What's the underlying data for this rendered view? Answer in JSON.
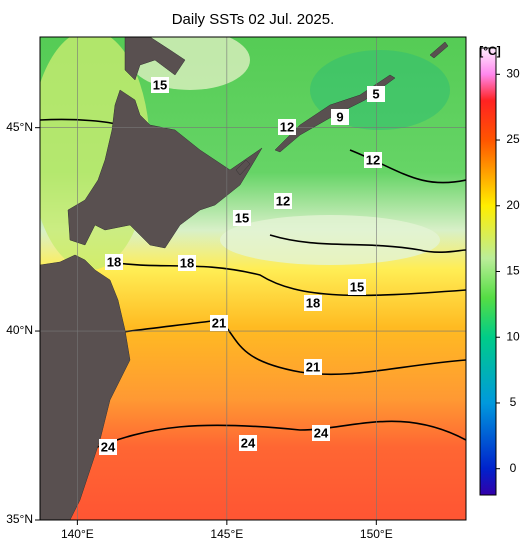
{
  "title": "Daily SSTs 02 Jul. 2025.",
  "map": {
    "xlim": [
      138.75,
      153
    ],
    "ylim": [
      35,
      47.1
    ],
    "xticks": [
      {
        "value": 140,
        "label": "140°E"
      },
      {
        "value": 145,
        "label": "145°E"
      },
      {
        "value": 150,
        "label": "150°E"
      }
    ],
    "yticks": [
      {
        "value": 35,
        "label": "35°N"
      },
      {
        "value": 40,
        "label": "40°N"
      },
      {
        "value": 45,
        "label": "45°N"
      }
    ],
    "contour_labels": [
      15,
      12,
      9,
      5,
      12,
      12,
      15,
      18,
      18,
      15,
      18,
      21,
      21,
      24,
      24,
      24
    ]
  },
  "colorbar": {
    "unit": "[°C]",
    "lim": [
      -2,
      32
    ],
    "ticks": [
      0,
      5,
      10,
      15,
      20,
      25,
      30
    ],
    "colormap": [
      {
        "value": -2,
        "color": "#3300aa"
      },
      {
        "value": 0,
        "color": "#0022cc"
      },
      {
        "value": 5,
        "color": "#0099dd"
      },
      {
        "value": 10,
        "color": "#00cc88"
      },
      {
        "value": 13,
        "color": "#55dd44"
      },
      {
        "value": 16,
        "color": "#bbee99"
      },
      {
        "value": 20,
        "color": "#ffee00"
      },
      {
        "value": 25,
        "color": "#ff5500"
      },
      {
        "value": 28,
        "color": "#ff2222"
      },
      {
        "value": 30,
        "color": "#ff88ee"
      },
      {
        "value": 32,
        "color": "#ffeeff"
      }
    ]
  }
}
